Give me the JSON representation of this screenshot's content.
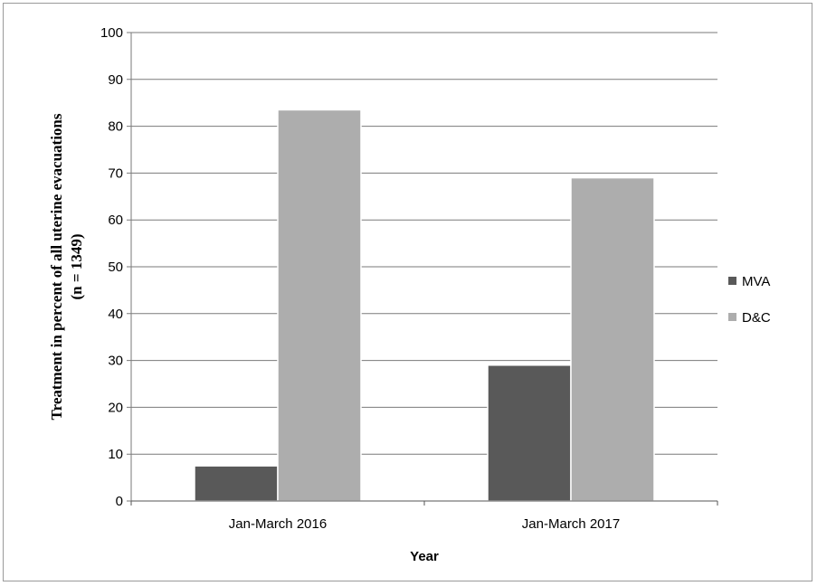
{
  "chart_data": {
    "type": "bar",
    "categories": [
      "Jan-March 2016",
      "Jan-March 2017"
    ],
    "series": [
      {
        "name": "MVA",
        "values": [
          7.5,
          29
        ],
        "color": "#595959"
      },
      {
        "name": "D&C",
        "values": [
          83.5,
          69
        ],
        "color": "#adadad"
      }
    ],
    "xlabel": "Year",
    "ylabel_lines": [
      "Treatment in  percent of all uterine evacuations",
      "(n = 1349)"
    ],
    "ylim": [
      0,
      100
    ],
    "yticks": [
      0,
      10,
      20,
      30,
      40,
      50,
      60,
      70,
      80,
      90,
      100
    ],
    "grid": true,
    "legend": "right"
  }
}
